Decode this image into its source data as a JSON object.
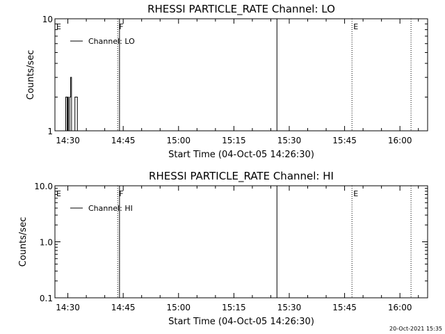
{
  "timestamp": "20-Oct-2021 15:35",
  "chart_data": [
    {
      "type": "line",
      "title": "RHESSI PARTICLE_RATE Channel: LO",
      "xlabel": "Start Time (04-Oct-05 14:26:30)",
      "ylabel": "Counts/sec",
      "yscale": "log",
      "xlim": [
        "14:26:30",
        "16:07:30"
      ],
      "ylim": [
        1,
        10
      ],
      "x_ticks": [
        "14:30",
        "14:45",
        "15:00",
        "15:15",
        "15:30",
        "15:45",
        "16:00"
      ],
      "y_ticks": [
        "1",
        "10"
      ],
      "legend": "Channel: LO",
      "legend_position": "top-left",
      "markers": [
        {
          "label": "E",
          "time": "14:26:30",
          "style": "none"
        },
        {
          "label": "F",
          "time": "14:43:30",
          "style": "dotted"
        },
        {
          "label": "",
          "time": "14:44:00",
          "style": "solid"
        },
        {
          "label": "",
          "time": "15:26:40",
          "style": "solid"
        },
        {
          "label": "E",
          "time": "15:47:00",
          "style": "dotted"
        },
        {
          "label": "",
          "time": "16:03:00",
          "style": "dotted"
        }
      ],
      "series": [
        {
          "name": "Channel: LO",
          "x": [
            "14:29:15",
            "14:29:25",
            "14:29:40",
            "14:29:50",
            "14:30:00",
            "14:30:08",
            "14:30:20",
            "14:30:30",
            "14:30:45",
            "14:31:00",
            "14:31:10",
            "14:31:20",
            "14:31:40",
            "14:31:55",
            "14:32:05",
            "14:32:20",
            "14:32:35",
            "14:32:50",
            "14:33:10",
            "14:33:25",
            "14:33:35"
          ],
          "y": [
            1,
            2,
            2,
            1,
            2,
            1,
            1,
            2,
            3,
            1,
            1,
            1,
            1,
            2,
            2,
            2,
            1,
            1,
            1,
            1,
            1
          ]
        }
      ]
    },
    {
      "type": "line",
      "title": "RHESSI PARTICLE_RATE Channel: HI",
      "xlabel": "Start Time (04-Oct-05 14:26:30)",
      "ylabel": "Counts/sec",
      "yscale": "log",
      "xlim": [
        "14:26:30",
        "16:07:30"
      ],
      "ylim": [
        0.1,
        10
      ],
      "x_ticks": [
        "14:30",
        "14:45",
        "15:00",
        "15:15",
        "15:30",
        "15:45",
        "16:00"
      ],
      "y_ticks": [
        "0.1",
        "1.0",
        "10.0"
      ],
      "legend": "Channel: HI",
      "legend_position": "top-left",
      "markers": [
        {
          "label": "E",
          "time": "14:26:30",
          "style": "none"
        },
        {
          "label": "F",
          "time": "14:43:30",
          "style": "dotted"
        },
        {
          "label": "",
          "time": "14:44:00",
          "style": "solid"
        },
        {
          "label": "",
          "time": "15:26:40",
          "style": "solid"
        },
        {
          "label": "E",
          "time": "15:47:00",
          "style": "dotted"
        },
        {
          "label": "",
          "time": "16:03:00",
          "style": "dotted"
        }
      ],
      "series": [
        {
          "name": "Channel: HI",
          "x": [],
          "y": []
        }
      ]
    }
  ]
}
